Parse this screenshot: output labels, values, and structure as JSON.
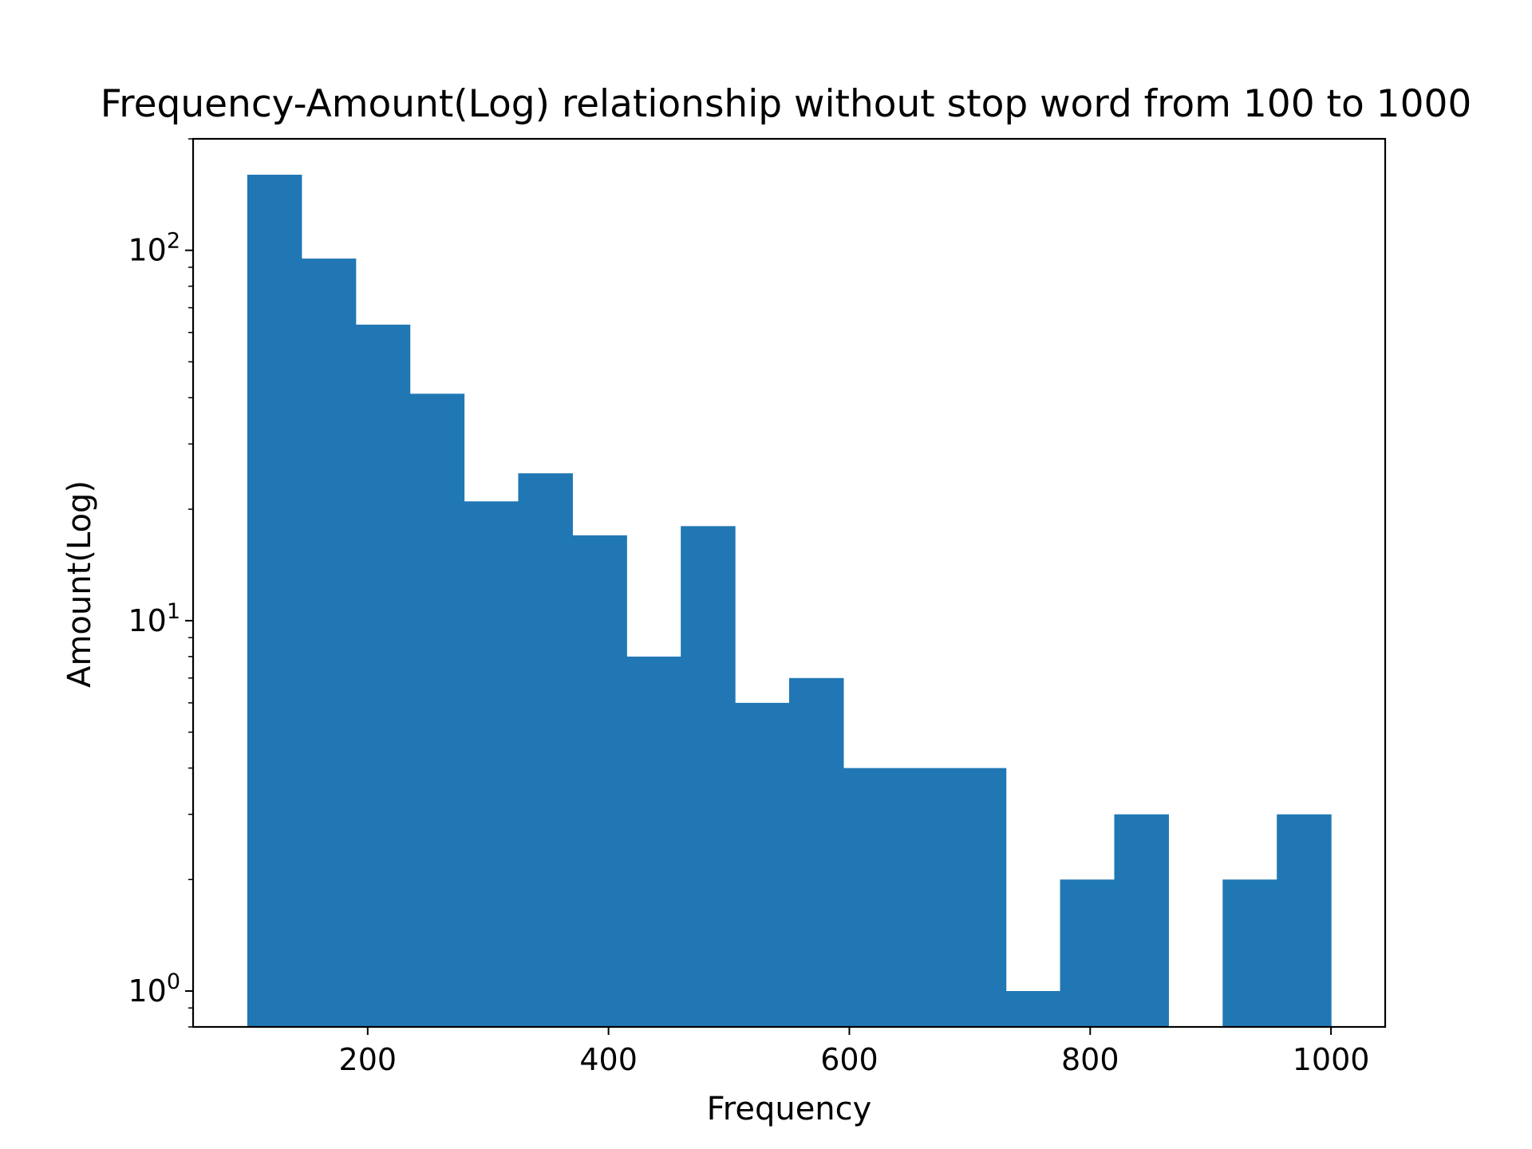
{
  "chart_data": {
    "type": "bar",
    "subtype": "histogram",
    "title": "Frequency-Amount(Log) relationship without stop word from 100 to 1000",
    "xlabel": "Frequency",
    "ylabel": "Amount(Log)",
    "yscale": "log",
    "xlim": [
      55,
      1045
    ],
    "ylim": [
      0.8,
      200
    ],
    "xticks": [
      200,
      400,
      600,
      800,
      1000
    ],
    "xtick_labels": [
      "200",
      "400",
      "600",
      "800",
      "1000"
    ],
    "yticks": [
      1,
      10,
      100
    ],
    "ytick_labels": [
      {
        "base": "10",
        "exp": "0"
      },
      {
        "base": "10",
        "exp": "1"
      },
      {
        "base": "10",
        "exp": "2"
      }
    ],
    "bin_edges": [
      100,
      145,
      190,
      235,
      280,
      325,
      370,
      415,
      460,
      505,
      550,
      595,
      640,
      685,
      730,
      775,
      820,
      865,
      910,
      955,
      1000
    ],
    "values": [
      160,
      95,
      63,
      41,
      21,
      25,
      17,
      8,
      18,
      6,
      7,
      4,
      4,
      4,
      1,
      2,
      3,
      0,
      2,
      3
    ],
    "bar_color": "#2077b4",
    "grid": false,
    "legend": null
  }
}
